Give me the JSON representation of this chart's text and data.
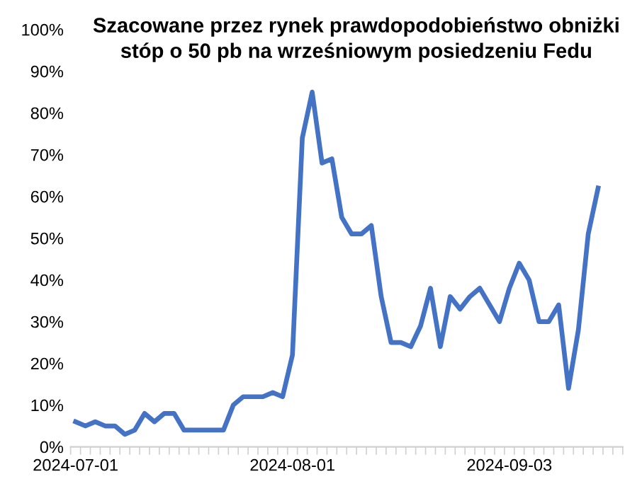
{
  "chart_data": {
    "type": "line",
    "title": "Szacowane przez rynek prawdopodobieństwo obniżki\nstóp o 50 pb na wrześniowym posiedzeniu Fedu",
    "categories": [
      "2024-07-01",
      null,
      null,
      null,
      null,
      null,
      null,
      null,
      null,
      null,
      null,
      null,
      null,
      null,
      null,
      null,
      null,
      null,
      null,
      null,
      null,
      null,
      "2024-08-01",
      null,
      null,
      null,
      null,
      null,
      null,
      null,
      null,
      null,
      null,
      null,
      null,
      null,
      null,
      null,
      null,
      null,
      null,
      null,
      null,
      null,
      "2024-09-03",
      null,
      null,
      null,
      null,
      null,
      null,
      null,
      null,
      null,
      null,
      null
    ],
    "series": [
      {
        "color": "#4472c4",
        "values": [
          6,
          5,
          6,
          5,
          5,
          3,
          4,
          8,
          6,
          8,
          8,
          4,
          4,
          4,
          4,
          4,
          10,
          12,
          12,
          12,
          13,
          12,
          22,
          74,
          85,
          68,
          69,
          55,
          51,
          51,
          53,
          36,
          25,
          25,
          24,
          29,
          38,
          24,
          36,
          33,
          36,
          38,
          34,
          30,
          38,
          44,
          40,
          30,
          30,
          34,
          14,
          28,
          51,
          62,
          null,
          null
        ]
      }
    ],
    "ylim": [
      0,
      100
    ],
    "yticks": [
      {
        "value": 0,
        "label": "0%"
      },
      {
        "value": 10,
        "label": "10%"
      },
      {
        "value": 20,
        "label": "20%"
      },
      {
        "value": 30,
        "label": "30%"
      },
      {
        "value": 40,
        "label": "40%"
      },
      {
        "value": 50,
        "label": "50%"
      },
      {
        "value": 60,
        "label": "60%"
      },
      {
        "value": 70,
        "label": "70%"
      },
      {
        "value": 80,
        "label": "80%"
      },
      {
        "value": 90,
        "label": "90%"
      },
      {
        "value": 100,
        "label": "100%"
      }
    ],
    "grid": false,
    "marker": "none",
    "line_style": "solid"
  }
}
